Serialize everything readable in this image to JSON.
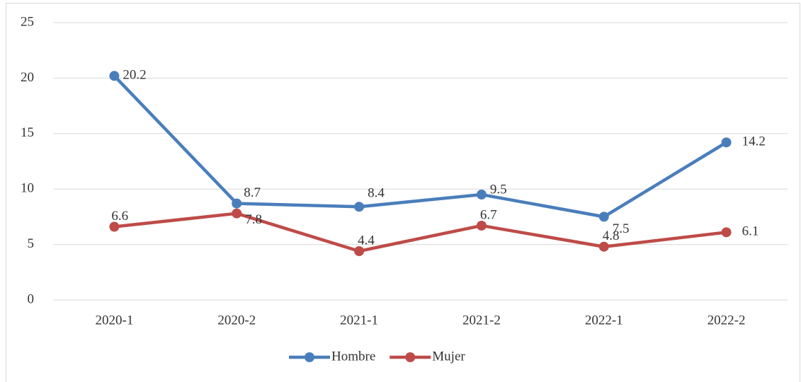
{
  "chart_data": {
    "type": "line",
    "categories": [
      "2020-1",
      "2020-2",
      "2021-1",
      "2021-2",
      "2022-1",
      "2022-2"
    ],
    "series": [
      {
        "name": "Hombre",
        "color": "#4a7ebb",
        "values": [
          20.2,
          8.7,
          8.4,
          9.5,
          7.5,
          14.2
        ]
      },
      {
        "name": "Mujer",
        "color": "#be4b48",
        "values": [
          6.6,
          7.8,
          4.4,
          6.7,
          4.8,
          6.1
        ]
      }
    ],
    "ylim": [
      0,
      25
    ],
    "yticks": [
      0,
      5,
      10,
      15,
      20,
      25
    ],
    "grid": true,
    "legend": "bottom"
  }
}
